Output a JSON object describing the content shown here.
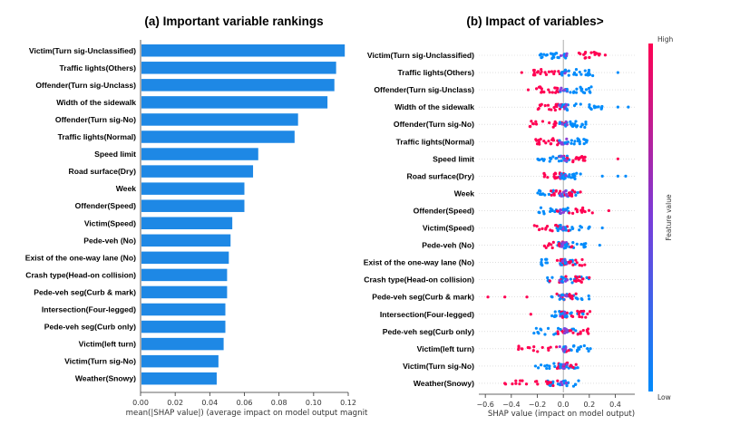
{
  "chart_data": [
    {
      "type": "bar",
      "orientation": "horizontal",
      "title": "(a) Important variable rankings",
      "xlabel": "mean(|SHAP value|) (average impact on model output magnit",
      "xlim": [
        0,
        0.12
      ],
      "xticks": [
        "0.00",
        "0.02",
        "0.04",
        "0.06",
        "0.08",
        "0.10",
        "0.12"
      ],
      "bar_color": "#1e88e5",
      "categories": [
        "Victim(Turn sig-Unclassified)",
        "Traffic lights(Others)",
        "Offender(Turn sig-Unclass)",
        "Width of the sidewalk",
        "Offender(Turn sig-No)",
        "Traffic lights(Normal)",
        "Speed limit",
        "Road surface(Dry)",
        "Week",
        "Offender(Speed)",
        "Victim(Speed)",
        "Pede-veh (No)",
        "Exist of the one-way lane (No)",
        "Crash type(Head-on collision)",
        "Pede-veh seg(Curb & mark)",
        "Intersection(Four-legged)",
        "Pede-veh seg(Curb only)",
        "Victim(left turn)",
        "Victim(Turn sig-No)",
        "Weather(Snowy)"
      ],
      "values": [
        0.118,
        0.113,
        0.112,
        0.108,
        0.091,
        0.089,
        0.068,
        0.065,
        0.06,
        0.06,
        0.053,
        0.052,
        0.051,
        0.05,
        0.05,
        0.049,
        0.049,
        0.048,
        0.045,
        0.044
      ]
    },
    {
      "type": "scatter",
      "subtype": "shap-beeswarm",
      "title": "(b) Impact of variables>",
      "xlabel": "SHAP value (impact on model output)",
      "xlim": [
        -0.65,
        0.55
      ],
      "xticks": [
        -0.6,
        -0.4,
        -0.2,
        0.0,
        0.2,
        0.4
      ],
      "colorbar": {
        "label": "Feature value",
        "high": "High",
        "low": "Low",
        "low_color": "#008bfb",
        "high_color": "#ff0052"
      },
      "rows": [
        {
          "feature": "Victim(Turn sig-Unclassified)",
          "low_range": [
            -0.2,
            -0.02
          ],
          "high_range": [
            0.05,
            0.33
          ],
          "outliers": []
        },
        {
          "feature": "Traffic lights(Others)",
          "low_range": [
            0.02,
            0.28
          ],
          "high_range": [
            -0.25,
            -0.02
          ],
          "outliers": [
            [
              -0.32,
              1
            ],
            [
              0.42,
              0
            ]
          ]
        },
        {
          "feature": "Offender(Turn sig-Unclass)",
          "low_range": [
            0.02,
            0.22
          ],
          "high_range": [
            -0.22,
            0.0
          ],
          "outliers": [
            [
              -0.27,
              1
            ]
          ]
        },
        {
          "feature": "Width of the sidewalk",
          "low_range": [
            0.0,
            0.3
          ],
          "high_range": [
            -0.2,
            0.02
          ],
          "outliers": [
            [
              0.42,
              0
            ],
            [
              0.5,
              0
            ]
          ]
        },
        {
          "feature": "Offender(Turn sig-No)",
          "low_range": [
            0.0,
            0.18
          ],
          "high_range": [
            -0.3,
            0.02
          ],
          "outliers": []
        },
        {
          "feature": "Traffic lights(Normal)",
          "low_range": [
            0.0,
            0.2
          ],
          "high_range": [
            -0.25,
            -0.02
          ],
          "outliers": []
        },
        {
          "feature": "Speed limit",
          "low_range": [
            -0.22,
            0.05
          ],
          "high_range": [
            -0.05,
            0.18
          ],
          "outliers": [
            [
              0.42,
              1
            ]
          ]
        },
        {
          "feature": "Road surface(Dry)",
          "low_range": [
            0.0,
            0.15
          ],
          "high_range": [
            -0.15,
            0.02
          ],
          "outliers": [
            [
              0.3,
              0
            ],
            [
              0.42,
              0
            ],
            [
              0.48,
              0
            ]
          ]
        },
        {
          "feature": "Week",
          "low_range": [
            -0.25,
            0.12
          ],
          "high_range": [
            -0.1,
            0.15
          ],
          "outliers": []
        },
        {
          "feature": "Offender(Speed)",
          "low_range": [
            -0.2,
            0.05
          ],
          "high_range": [
            -0.05,
            0.25
          ],
          "outliers": [
            [
              0.35,
              1
            ]
          ]
        },
        {
          "feature": "Victim(Speed)",
          "low_range": [
            -0.05,
            0.22
          ],
          "high_range": [
            -0.28,
            0.05
          ],
          "outliers": [
            [
              0.3,
              0
            ]
          ]
        },
        {
          "feature": "Pede-veh (No)",
          "low_range": [
            -0.05,
            0.18
          ],
          "high_range": [
            -0.15,
            0.08
          ],
          "outliers": [
            [
              0.28,
              0
            ]
          ]
        },
        {
          "feature": "Exist of the one-way lane (No)",
          "low_range": [
            -0.18,
            0.12
          ],
          "high_range": [
            -0.05,
            0.18
          ],
          "outliers": []
        },
        {
          "feature": "Crash type(Head-on collision)",
          "low_range": [
            -0.15,
            0.2
          ],
          "high_range": [
            -0.15,
            0.2
          ],
          "outliers": []
        },
        {
          "feature": "Pede-veh seg(Curb & mark)",
          "low_range": [
            -0.12,
            0.2
          ],
          "high_range": [
            -0.05,
            0.1
          ],
          "outliers": [
            [
              -0.58,
              1
            ],
            [
              -0.45,
              1
            ],
            [
              -0.28,
              1
            ]
          ]
        },
        {
          "feature": "Intersection(Four-legged)",
          "low_range": [
            -0.1,
            0.18
          ],
          "high_range": [
            -0.05,
            0.22
          ],
          "outliers": [
            [
              -0.25,
              1
            ]
          ]
        },
        {
          "feature": "Pede-veh seg(Curb only)",
          "low_range": [
            -0.25,
            0.15
          ],
          "high_range": [
            -0.05,
            0.2
          ],
          "outliers": []
        },
        {
          "feature": "Victim(left turn)",
          "low_range": [
            0.0,
            0.22
          ],
          "high_range": [
            -0.35,
            0.05
          ],
          "outliers": []
        },
        {
          "feature": "Victim(Turn sig-No)",
          "low_range": [
            -0.22,
            0.12
          ],
          "high_range": [
            -0.05,
            0.1
          ],
          "outliers": []
        },
        {
          "feature": "Weather(Snowy)",
          "low_range": [
            -0.12,
            0.12
          ],
          "high_range": [
            -0.45,
            0.0
          ],
          "outliers": [
            [
              -0.45,
              1
            ]
          ]
        }
      ]
    }
  ]
}
